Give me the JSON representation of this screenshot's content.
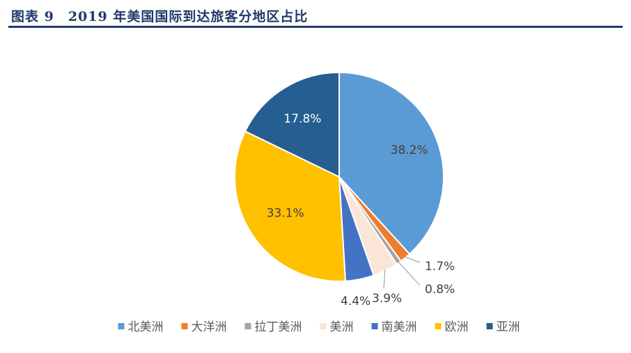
{
  "figure": {
    "title": "图表 9　2019 年美国国际到达旅客分地区占比"
  },
  "chart_data": {
    "type": "pie",
    "title": "",
    "categories": [
      "北美洲",
      "大洋洲",
      "拉丁美洲",
      "美洲",
      "南美洲",
      "欧洲",
      "亚洲"
    ],
    "values": [
      38.2,
      1.7,
      0.8,
      3.9,
      4.4,
      33.1,
      17.8
    ],
    "value_labels": [
      "38.2%",
      "1.7%",
      "0.8%",
      "3.9%",
      "4.4%",
      "33.1%",
      "17.8%"
    ],
    "colors": [
      "#5b9bd5",
      "#ed7d31",
      "#a5a5a5",
      "#fbe5d6",
      "#4472c4",
      "#ffc000",
      "#255e91"
    ],
    "label_colors": [
      "#404040",
      "#404040",
      "#404040",
      "#404040",
      "#404040",
      "#404040",
      "#ffffff"
    ],
    "start_angle": "12 o'clock",
    "direction": "clockwise",
    "legend_position": "bottom"
  }
}
